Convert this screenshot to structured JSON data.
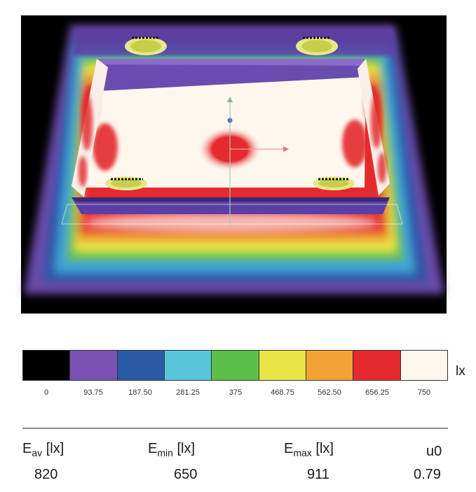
{
  "legend": {
    "unit": "lx",
    "colors": [
      "#000000",
      "#7a52b4",
      "#2a5aa6",
      "#56c6dc",
      "#5cbf49",
      "#e8e647",
      "#f2a234",
      "#e42a2e",
      "#fdf7ee"
    ],
    "ticks": [
      "0",
      "93.75",
      "187.50",
      "281.25",
      "375",
      "468.75",
      "562.50",
      "656.25",
      "750"
    ]
  },
  "stats": [
    {
      "symbol": "E",
      "sub": "av",
      "unit": "[lx]",
      "value": "820"
    },
    {
      "symbol": "E",
      "sub": "min",
      "unit": "[lx]",
      "value": "650"
    },
    {
      "symbol": "E",
      "sub": "max",
      "unit": "[lx]",
      "value": "911"
    },
    {
      "symbol": "u0",
      "sub": "",
      "unit": "",
      "value": "0.79"
    }
  ]
}
